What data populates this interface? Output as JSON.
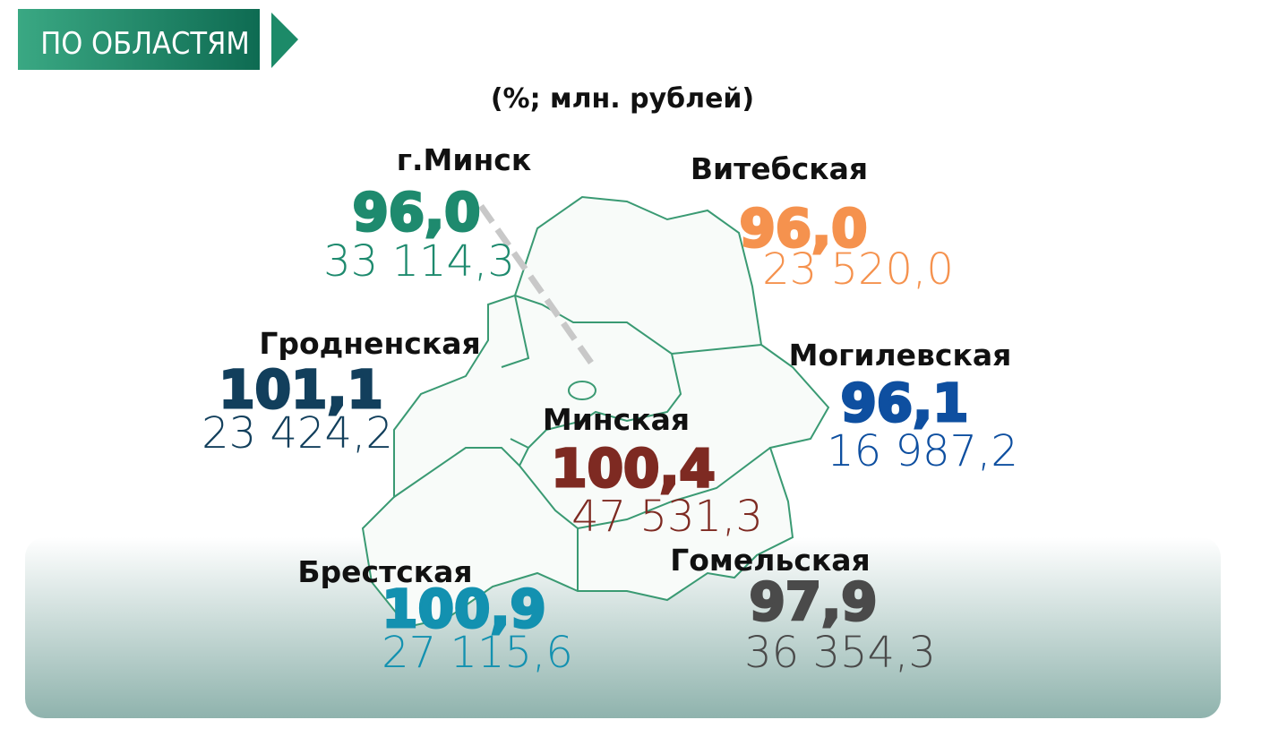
{
  "header": {
    "title": "ПО ОБЛАСТЯМ"
  },
  "subtitle": "(%; млн. рублей)",
  "regions": [
    {
      "name": "г.Минск",
      "percent": "96,0",
      "amount": "33 114,3"
    },
    {
      "name": "Витебская",
      "percent": "96,0",
      "amount": "23 520,0"
    },
    {
      "name": "Гродненская",
      "percent": "101,1",
      "amount": "23 424,2"
    },
    {
      "name": "Могилевская",
      "percent": "96,1",
      "amount": "16 987,2"
    },
    {
      "name": "Минская",
      "percent": "100,4",
      "amount": "47 531,3"
    },
    {
      "name": "Брестская",
      "percent": "100,9",
      "amount": "27 115,6"
    },
    {
      "name": "Гомельская",
      "percent": "97,9",
      "amount": "36 354,3"
    }
  ]
}
